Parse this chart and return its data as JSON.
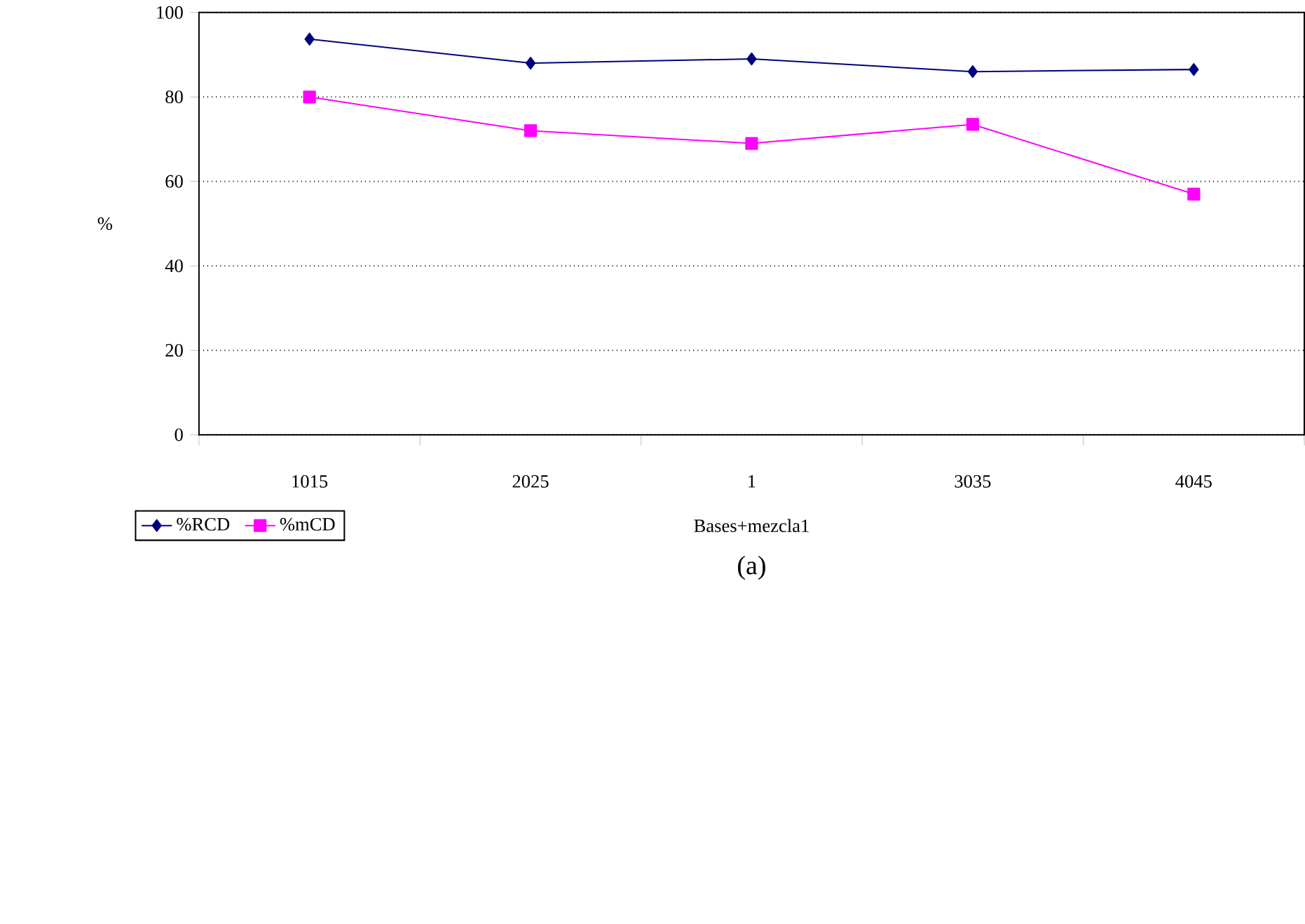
{
  "chart_data": {
    "type": "line",
    "xlabel": "Bases+mezcla1",
    "ylabel": "%",
    "categories": [
      "1015",
      "2025",
      "1",
      "3035",
      "4045"
    ],
    "series": [
      {
        "name": "%RCD",
        "color": "#000080",
        "marker": "diamond",
        "values": [
          93.7,
          88,
          89,
          86,
          86.5
        ]
      },
      {
        "name": "%mCD",
        "color": "#ff00ff",
        "marker": "square",
        "values": [
          80,
          72,
          69,
          73.5,
          57
        ]
      }
    ],
    "ylim": [
      0,
      100
    ],
    "yticks": [
      0,
      20,
      40,
      60,
      80,
      100
    ],
    "grid": "y",
    "legend": "bottom left",
    "line_style": "solid",
    "annotations": [
      "(a)"
    ]
  }
}
